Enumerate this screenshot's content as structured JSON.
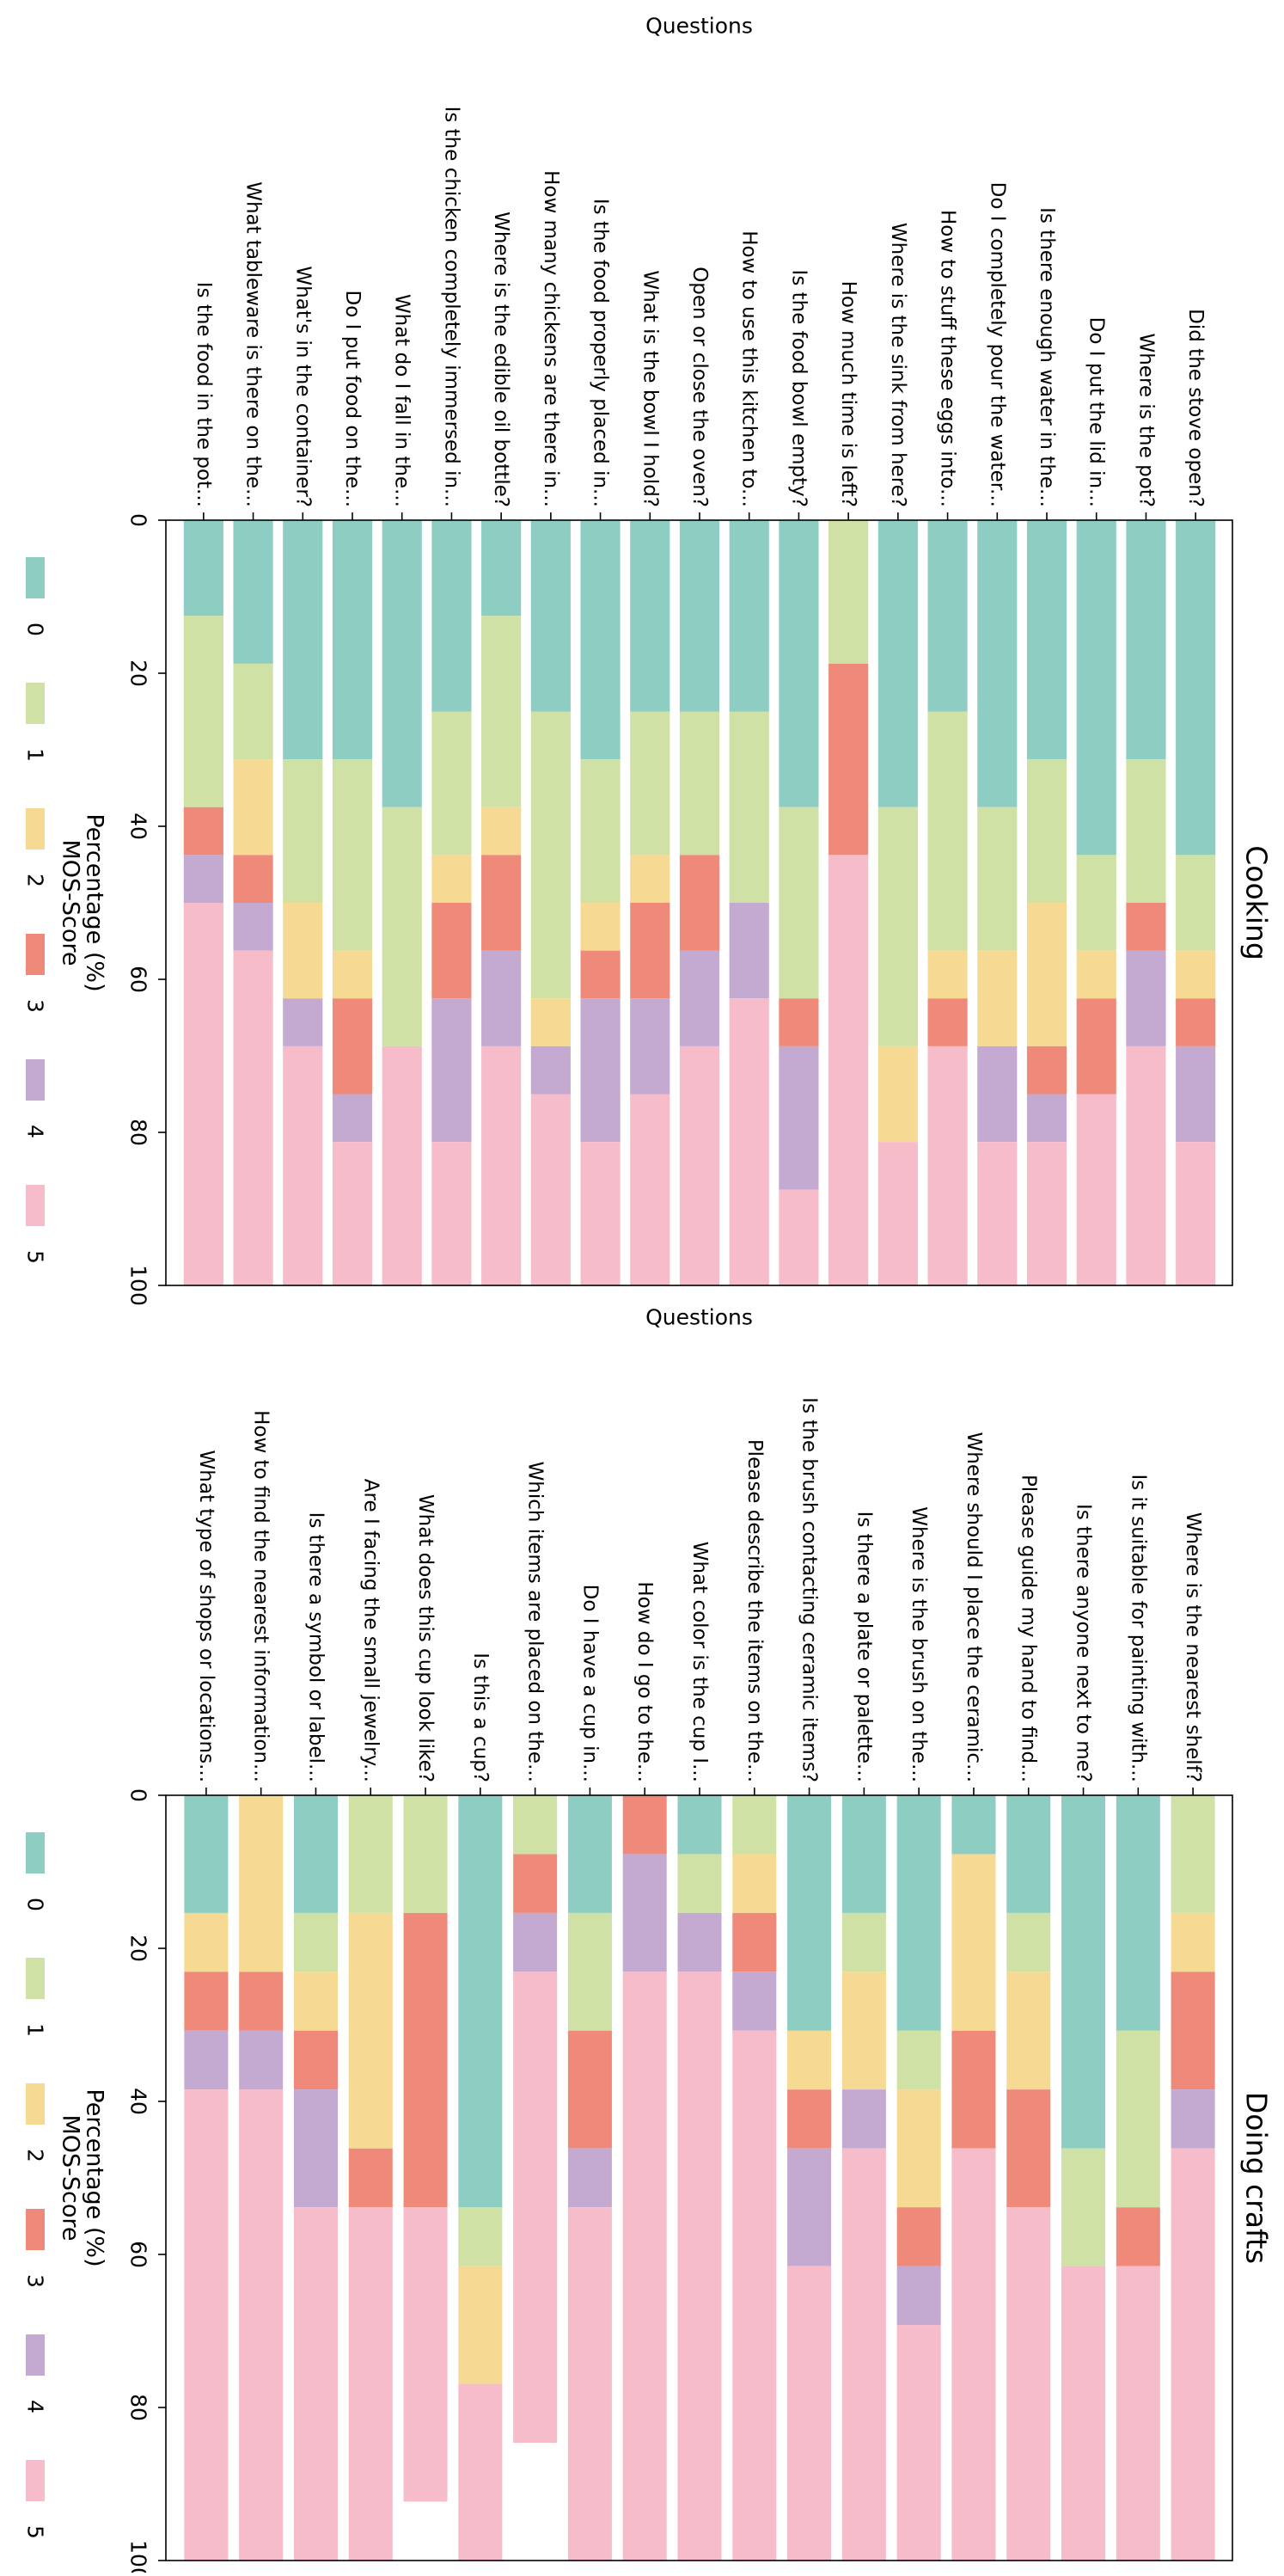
{
  "mos_colors": {
    "0": "#8ecdc1",
    "1": "#cfe1a5",
    "2": "#f6da94",
    "3": "#ef8a7b",
    "4": "#c4a9d1",
    "5": "#f7bcca"
  },
  "chart_data": [
    {
      "type": "bar",
      "stacked": true,
      "orientation": "horizontal",
      "title": "Cooking",
      "xlabel": "Percentage (%)",
      "ylabel": "Questions",
      "xlim": [
        0,
        100
      ],
      "xticks": [
        "0",
        "20",
        "40",
        "60",
        "80",
        "100"
      ],
      "legend_title": "MOS-Score",
      "legend_position": "left",
      "legend_labels": [
        "0",
        "1",
        "2",
        "3",
        "4",
        "5"
      ],
      "categories": [
        "Is the food in the pot...",
        "What tableware is there on the...",
        "What's in the container?",
        "Do I put food on the...",
        "What do I fall in the...",
        "Is the chicken completely immersed in...",
        "Where is the edible oil bottle?",
        "How many chickens are there in...",
        "Is the food properly placed in...",
        "What is the bowl I hold?",
        "Open or close the oven?",
        "How to use this kitchen to...",
        "Is the food bowl empty?",
        "How much time is left?",
        "Where is the sink from here?",
        "How to stuff these eggs into...",
        "Do I completely pour the water...",
        "Is there enough water in the...",
        "Do I put the lid in...",
        "Where is the pot?",
        "Did the stove open?"
      ],
      "series": [
        {
          "name": "0",
          "values": [
            12.5,
            18.75,
            31.25,
            31.25,
            37.5,
            25,
            12.5,
            25,
            31.25,
            25,
            25,
            25,
            37.5,
            0,
            37.5,
            25,
            37.5,
            31.25,
            43.75,
            31.25,
            43.75
          ]
        },
        {
          "name": "1",
          "values": [
            25,
            12.5,
            18.75,
            25,
            31.25,
            18.75,
            25,
            37.5,
            18.75,
            18.75,
            18.75,
            25,
            25,
            18.75,
            31.25,
            31.25,
            18.75,
            18.75,
            12.5,
            18.75,
            12.5
          ]
        },
        {
          "name": "2",
          "values": [
            0,
            12.5,
            12.5,
            6.25,
            0,
            6.25,
            6.25,
            6.25,
            6.25,
            6.25,
            0,
            0,
            0,
            0,
            12.5,
            6.25,
            12.5,
            18.75,
            6.25,
            0,
            6.25
          ]
        },
        {
          "name": "3",
          "values": [
            6.25,
            6.25,
            0,
            12.5,
            0,
            12.5,
            12.5,
            0,
            6.25,
            12.5,
            12.5,
            0,
            6.25,
            25,
            0,
            6.25,
            0,
            6.25,
            12.5,
            6.25,
            6.25
          ]
        },
        {
          "name": "4",
          "values": [
            6.25,
            6.25,
            6.25,
            6.25,
            0,
            18.75,
            12.5,
            6.25,
            18.75,
            12.5,
            12.5,
            12.5,
            18.75,
            0,
            0,
            0,
            12.5,
            6.25,
            0,
            12.5,
            12.5
          ]
        },
        {
          "name": "5",
          "values": [
            50,
            43.75,
            31.25,
            18.75,
            31.25,
            18.75,
            31.25,
            25,
            18.75,
            25,
            31.25,
            37.5,
            12.5,
            56.25,
            18.75,
            31.25,
            18.75,
            18.75,
            25,
            31.25,
            18.75
          ]
        }
      ]
    },
    {
      "type": "bar",
      "stacked": true,
      "orientation": "horizontal",
      "title": "Doing crafts",
      "xlabel": "Percentage (%)",
      "ylabel": "Questions",
      "xlim": [
        0,
        100
      ],
      "xticks": [
        "0",
        "20",
        "40",
        "60",
        "80",
        "100"
      ],
      "legend_title": "MOS-Score",
      "legend_position": "left",
      "legend_labels": [
        "0",
        "1",
        "2",
        "3",
        "4",
        "5"
      ],
      "categories": [
        "What type of shops or locations...",
        "How to find the nearest information...",
        "Is there a symbol or label...",
        "Are I facing the small jewelry...",
        "What does this cup look like?",
        "Is this a cup?",
        "Which items are placed on the...",
        "Do I have a cup in...",
        "How do I go to the...",
        "What color is the cup I...",
        "Please describe the items on the...",
        "Is the brush contacting ceramic items?",
        "Is there a plate or palette...",
        "Where is the brush on the...",
        "Where should I place the ceramic...",
        "Please guide my hand to find...",
        "Is there anyone next to me?",
        "Is it suitable for painting with...",
        "Where is the nearest shelf?"
      ],
      "series": [
        {
          "name": "0",
          "values": [
            15.38,
            0,
            15.38,
            0,
            0,
            53.85,
            0,
            15.38,
            0,
            7.69,
            0,
            30.77,
            15.38,
            30.77,
            7.69,
            15.38,
            46.15,
            30.77,
            0
          ]
        },
        {
          "name": "1",
          "values": [
            0,
            0,
            7.69,
            15.38,
            15.38,
            7.69,
            7.69,
            15.38,
            0,
            7.69,
            7.69,
            0,
            7.69,
            7.69,
            0,
            7.69,
            15.38,
            23.08,
            15.38
          ]
        },
        {
          "name": "2",
          "values": [
            7.69,
            23.08,
            7.69,
            30.77,
            0,
            15.38,
            0,
            0,
            0,
            0,
            7.69,
            7.69,
            15.38,
            15.38,
            23.08,
            15.38,
            0,
            0,
            7.69
          ]
        },
        {
          "name": "3",
          "values": [
            7.69,
            7.69,
            7.69,
            7.69,
            38.46,
            0,
            7.69,
            15.38,
            7.69,
            0,
            7.69,
            7.69,
            0,
            7.69,
            15.38,
            15.38,
            0,
            7.69,
            15.38
          ]
        },
        {
          "name": "4",
          "values": [
            7.69,
            7.69,
            15.38,
            0,
            0,
            0,
            7.69,
            7.69,
            15.38,
            7.69,
            7.69,
            15.38,
            7.69,
            7.69,
            0,
            0,
            0,
            0,
            7.69
          ]
        },
        {
          "name": "5",
          "values": [
            61.54,
            61.54,
            46.15,
            46.15,
            38.46,
            23.08,
            61.54,
            46.15,
            76.92,
            76.92,
            69.23,
            38.46,
            53.85,
            30.77,
            53.85,
            46.15,
            38.46,
            38.46,
            53.85
          ]
        }
      ]
    }
  ]
}
